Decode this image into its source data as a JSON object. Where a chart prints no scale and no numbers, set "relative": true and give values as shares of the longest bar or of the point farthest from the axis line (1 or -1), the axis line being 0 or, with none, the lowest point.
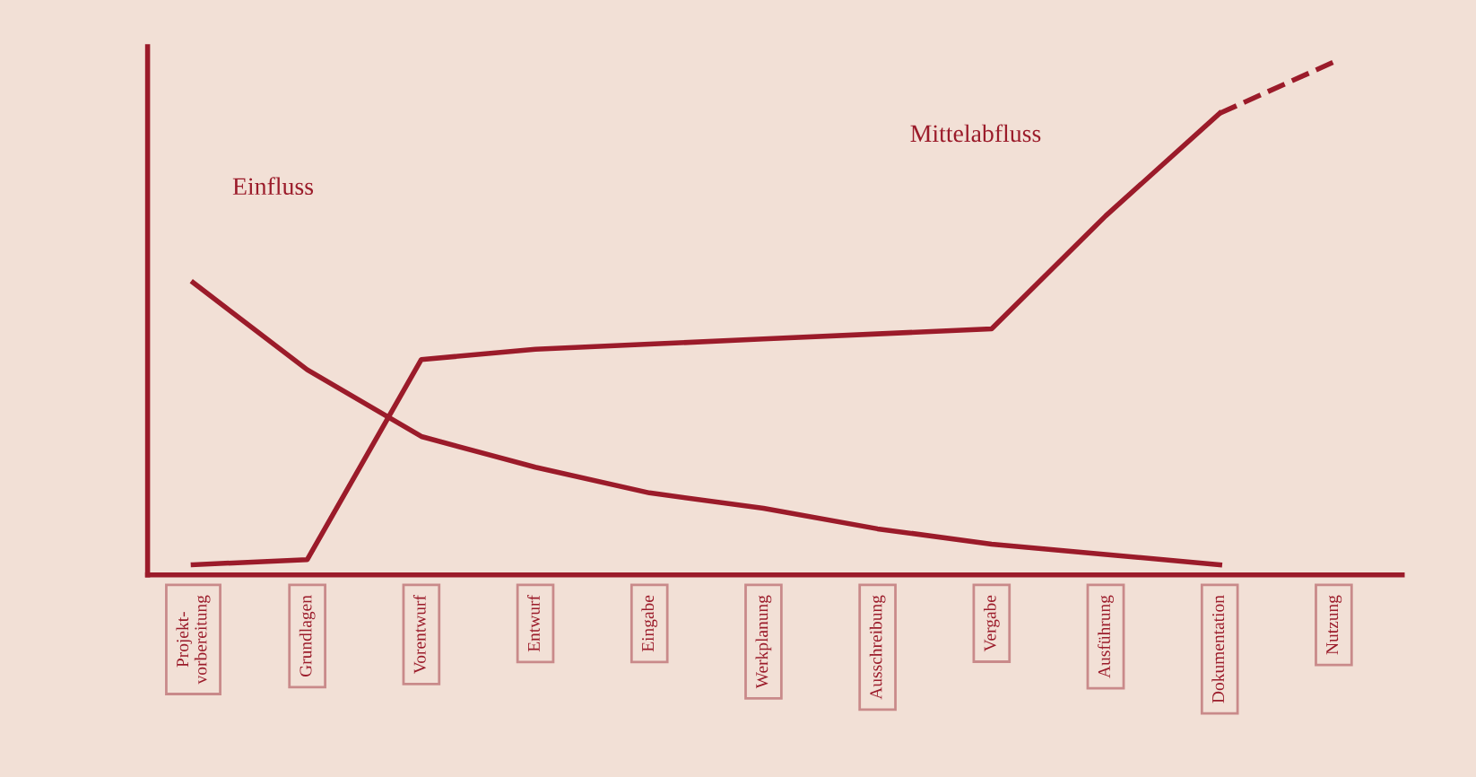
{
  "chart_data": {
    "type": "line",
    "relative": true,
    "categories": [
      "Projekt-\nvorbereitung",
      "Grundlagen",
      "Vorentwurf",
      "Entwurf",
      "Eingabe",
      "Werkplanung",
      "Ausschreibung",
      "Vergabe",
      "Ausführung",
      "Dokumentation",
      "Nutzung"
    ],
    "series": [
      {
        "color": "#9b1b2a",
        "values": [
          0.57,
          0.4,
          0.27,
          0.21,
          0.16,
          0.13,
          0.09,
          0.06,
          0.04,
          0.02,
          null
        ]
      },
      {
        "color": "#9b1b2a",
        "values": [
          0.02,
          0.03,
          0.42,
          0.44,
          0.45,
          0.46,
          0.47,
          0.48,
          0.7,
          0.9,
          null
        ]
      },
      {
        "color": "#9b1b2a",
        "line_style": "dashed",
        "values": [
          null,
          null,
          null,
          null,
          null,
          null,
          null,
          null,
          null,
          0.9,
          1.0
        ]
      }
    ],
    "annotations": [
      "Einfluss",
      "Mittelabfluss"
    ],
    "grid": false,
    "legend": false,
    "marker": "none"
  }
}
